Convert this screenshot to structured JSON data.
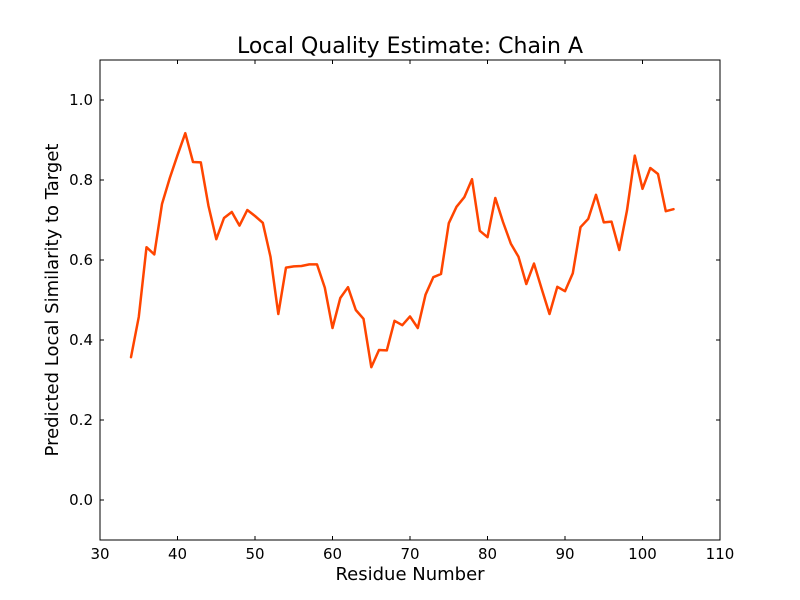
{
  "chart_data": {
    "type": "line",
    "title": "Local Quality Estimate: Chain A",
    "xlabel": "Residue Number",
    "ylabel": "Predicted Local Similarity to Target",
    "xlim": [
      30,
      110
    ],
    "ylim": [
      -0.1,
      1.1
    ],
    "xticks": [
      "30",
      "40",
      "50",
      "60",
      "70",
      "80",
      "90",
      "100",
      "110"
    ],
    "yticks": [
      "0.0",
      "0.2",
      "0.4",
      "0.6",
      "0.8",
      "1.0"
    ],
    "grid": false,
    "legend": "none",
    "series": [
      {
        "color": "#ff4500",
        "x": [
          34,
          35,
          36,
          37,
          38,
          39,
          40,
          41,
          42,
          43,
          44,
          45,
          46,
          47,
          48,
          49,
          50,
          51,
          52,
          53,
          54,
          55,
          56,
          57,
          58,
          59,
          60,
          61,
          62,
          63,
          64,
          65,
          66,
          67,
          68,
          69,
          70,
          71,
          72,
          73,
          74,
          75,
          76,
          77,
          78,
          79,
          80,
          81,
          82,
          83,
          84,
          85,
          86,
          87,
          88,
          89,
          90,
          91,
          92,
          93,
          94,
          95,
          96,
          97,
          98,
          99,
          100,
          101,
          102,
          103,
          104
        ],
        "y": [
          0.357,
          0.458,
          0.632,
          0.614,
          0.74,
          0.805,
          0.862,
          0.917,
          0.845,
          0.844,
          0.735,
          0.652,
          0.705,
          0.72,
          0.686,
          0.725,
          0.71,
          0.693,
          0.608,
          0.465,
          0.581,
          0.584,
          0.585,
          0.589,
          0.589,
          0.531,
          0.43,
          0.505,
          0.532,
          0.475,
          0.453,
          0.332,
          0.375,
          0.374,
          0.448,
          0.437,
          0.459,
          0.43,
          0.513,
          0.557,
          0.565,
          0.692,
          0.733,
          0.757,
          0.802,
          0.673,
          0.657,
          0.755,
          0.695,
          0.641,
          0.608,
          0.54,
          0.591,
          0.527,
          0.465,
          0.533,
          0.522,
          0.567,
          0.682,
          0.703,
          0.763,
          0.694,
          0.696,
          0.625,
          0.724,
          0.861,
          0.778,
          0.83,
          0.815,
          0.722,
          0.727
        ]
      }
    ]
  }
}
